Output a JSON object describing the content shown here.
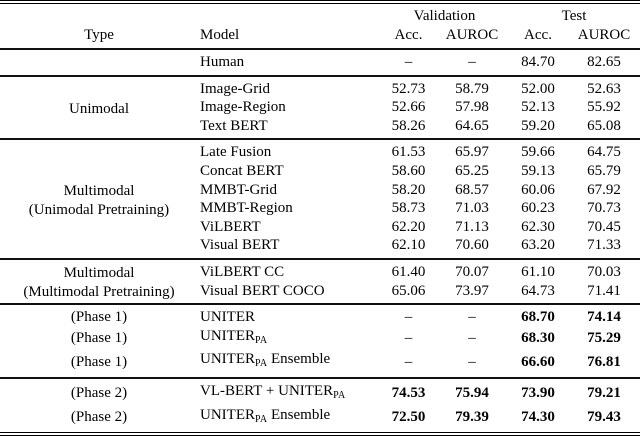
{
  "table": {
    "headers": {
      "validation": "Validation",
      "test": "Test",
      "type": "Type",
      "model": "Model",
      "acc": "Acc.",
      "auroc": "AUROC"
    },
    "text_color": "#000000",
    "background_color": "#ffffff",
    "sections": [
      {
        "rows": [
          {
            "type": "",
            "model": "Human",
            "values": [
              "–",
              "–",
              "84.70",
              "82.65"
            ],
            "bold": [
              false,
              false,
              false,
              false
            ]
          }
        ]
      },
      {
        "type_label_lines": [
          "Unimodal"
        ],
        "rows": [
          {
            "model": "Image-Grid",
            "values": [
              "52.73",
              "58.79",
              "52.00",
              "52.63"
            ]
          },
          {
            "model": "Image-Region",
            "values": [
              "52.66",
              "57.98",
              "52.13",
              "55.92"
            ]
          },
          {
            "model": "Text BERT",
            "values": [
              "58.26",
              "64.65",
              "59.20",
              "65.08"
            ]
          }
        ]
      },
      {
        "type_label_lines": [
          "Multimodal",
          "(Unimodal Pretraining)"
        ],
        "rows": [
          {
            "model": "Late Fusion",
            "values": [
              "61.53",
              "65.97",
              "59.66",
              "64.75"
            ]
          },
          {
            "model": "Concat BERT",
            "values": [
              "58.60",
              "65.25",
              "59.13",
              "65.79"
            ]
          },
          {
            "model": "MMBT-Grid",
            "values": [
              "58.20",
              "68.57",
              "60.06",
              "67.92"
            ]
          },
          {
            "model": "MMBT-Region",
            "values": [
              "58.73",
              "71.03",
              "60.23",
              "70.73"
            ]
          },
          {
            "model": "ViLBERT",
            "values": [
              "62.20",
              "71.13",
              "62.30",
              "70.45"
            ]
          },
          {
            "model": "Visual BERT",
            "values": [
              "62.10",
              "70.60",
              "63.20",
              "71.33"
            ]
          }
        ]
      },
      {
        "type_label_lines": [
          "Multimodal",
          "(Multimodal Pretraining)"
        ],
        "rows": [
          {
            "model": "ViLBERT CC",
            "values": [
              "61.40",
              "70.07",
              "61.10",
              "70.03"
            ]
          },
          {
            "model": "Visual BERT COCO",
            "values": [
              "65.06",
              "73.97",
              "64.73",
              "71.41"
            ]
          }
        ]
      },
      {
        "rows": [
          {
            "type": "(Phase 1)",
            "model": "UNITER",
            "values": [
              "–",
              "–",
              "68.70",
              "74.14"
            ],
            "bold": [
              false,
              false,
              true,
              true
            ]
          },
          {
            "type": "(Phase 1)",
            "model": "UNITER",
            "model_sub": "PA",
            "values": [
              "–",
              "–",
              "68.30",
              "75.29"
            ],
            "bold": [
              false,
              false,
              true,
              true
            ]
          },
          {
            "type": "(Phase 1)",
            "model": "UNITER",
            "model_sub": "PA",
            "model_suffix": " Ensemble",
            "values": [
              "–",
              "–",
              "66.60",
              "76.81"
            ],
            "bold": [
              false,
              false,
              true,
              true
            ]
          }
        ]
      },
      {
        "rows": [
          {
            "type": "(Phase 2)",
            "model": "VL-BERT + UNITER",
            "model_sub": "PA",
            "values": [
              "74.53",
              "75.94",
              "73.90",
              "79.21"
            ],
            "bold": [
              true,
              true,
              true,
              true
            ]
          },
          {
            "type": "(Phase 2)",
            "model": "UNITER",
            "model_sub": "PA",
            "model_suffix": " Ensemble",
            "values": [
              "72.50",
              "79.39",
              "74.30",
              "79.43"
            ],
            "bold": [
              true,
              true,
              true,
              true
            ]
          }
        ]
      }
    ]
  }
}
